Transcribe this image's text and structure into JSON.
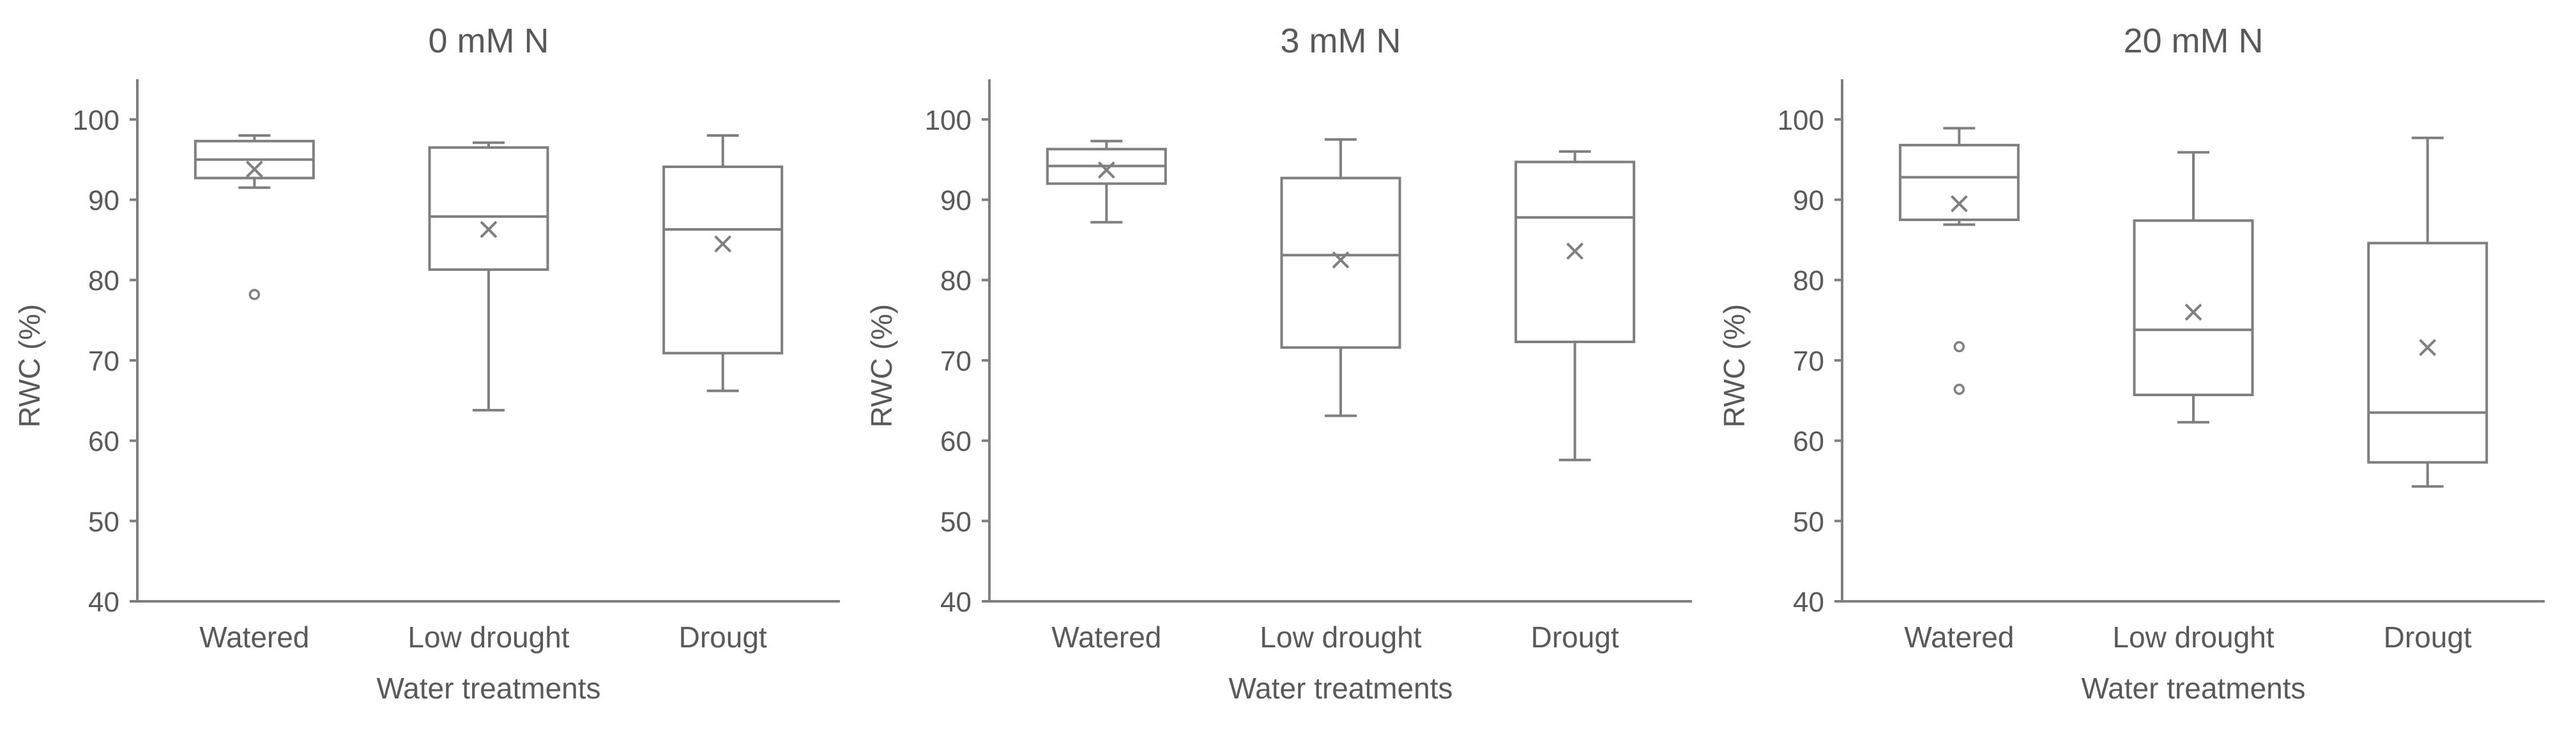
{
  "chart_data": [
    {
      "type": "box",
      "title": "0 mM N",
      "xlabel": "Water treatments",
      "ylabel": "RWC (%)",
      "ylim": [
        40,
        105
      ],
      "yticks": [
        40,
        50,
        60,
        70,
        80,
        90,
        100
      ],
      "categories": [
        "Watered",
        "Low drought",
        "Drougt"
      ],
      "boxes": [
        {
          "category": "Watered",
          "whisker_low": 91.5,
          "q1": 92.7,
          "median": 95.0,
          "q3": 97.3,
          "whisker_high": 98.0,
          "mean": 93.8,
          "outliers": [
            78.2
          ]
        },
        {
          "category": "Low drought",
          "whisker_low": 63.8,
          "q1": 81.3,
          "median": 87.9,
          "q3": 96.5,
          "whisker_high": 97.1,
          "mean": 86.3,
          "outliers": []
        },
        {
          "category": "Drougt",
          "whisker_low": 66.2,
          "q1": 70.9,
          "median": 86.3,
          "q3": 94.1,
          "whisker_high": 98.0,
          "mean": 84.5,
          "outliers": []
        }
      ],
      "grid": false,
      "legend": "none"
    },
    {
      "type": "box",
      "title": "3 mM N",
      "xlabel": "Water treatments",
      "ylabel": "RWC (%)",
      "ylim": [
        40,
        105
      ],
      "yticks": [
        40,
        50,
        60,
        70,
        80,
        90,
        100
      ],
      "categories": [
        "Watered",
        "Low drought",
        "Drougt"
      ],
      "boxes": [
        {
          "category": "Watered",
          "whisker_low": 87.2,
          "q1": 92.0,
          "median": 94.2,
          "q3": 96.3,
          "whisker_high": 97.3,
          "mean": 93.7,
          "outliers": []
        },
        {
          "category": "Low drought",
          "whisker_low": 63.1,
          "q1": 71.6,
          "median": 83.1,
          "q3": 92.7,
          "whisker_high": 97.5,
          "mean": 82.5,
          "outliers": []
        },
        {
          "category": "Drougt",
          "whisker_low": 57.6,
          "q1": 72.3,
          "median": 87.8,
          "q3": 94.7,
          "whisker_high": 96.0,
          "mean": 83.6,
          "outliers": []
        }
      ],
      "grid": false,
      "legend": "none"
    },
    {
      "type": "box",
      "title": "20 mM N",
      "xlabel": "Water treatments",
      "ylabel": "RWC (%)",
      "ylim": [
        40,
        105
      ],
      "yticks": [
        40,
        50,
        60,
        70,
        80,
        90,
        100
      ],
      "categories": [
        "Watered",
        "Low drought",
        "Drougt"
      ],
      "boxes": [
        {
          "category": "Watered",
          "whisker_low": 86.9,
          "q1": 87.5,
          "median": 92.8,
          "q3": 96.8,
          "whisker_high": 98.9,
          "mean": 89.5,
          "outliers": [
            71.7,
            66.4
          ]
        },
        {
          "category": "Low drought",
          "whisker_low": 62.3,
          "q1": 65.7,
          "median": 73.8,
          "q3": 87.4,
          "whisker_high": 95.9,
          "mean": 76.0,
          "outliers": []
        },
        {
          "category": "Drougt",
          "whisker_low": 54.3,
          "q1": 57.3,
          "median": 63.5,
          "q3": 84.6,
          "whisker_high": 97.7,
          "mean": 71.6,
          "outliers": []
        }
      ],
      "grid": false,
      "legend": "none"
    }
  ],
  "style": {
    "axis_color": "#7f7f7f",
    "box_color": "#7f7f7f",
    "text_color": "#595959",
    "background": "#ffffff"
  }
}
